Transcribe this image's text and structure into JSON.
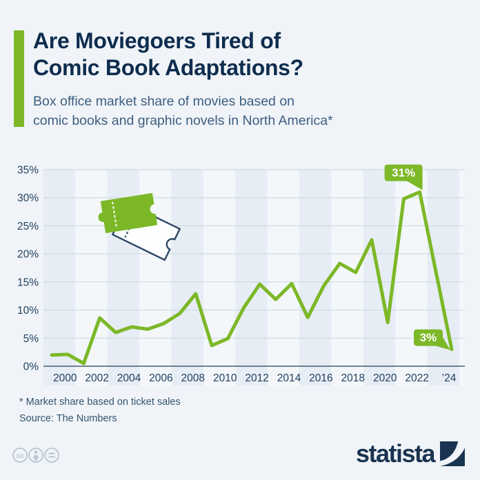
{
  "header": {
    "title_line1": "Are Moviegoers Tired of",
    "title_line2": "Comic Book Adaptations?",
    "subtitle_line1": "Box office market share of movies based on",
    "subtitle_line2": "comic books and graphic novels in North America*"
  },
  "chart_data": {
    "type": "line",
    "title": "Box office market share of movies based on comic books and graphic novels in North America",
    "unit": "%",
    "years": [
      1999,
      2000,
      2001,
      2002,
      2003,
      2004,
      2005,
      2006,
      2007,
      2008,
      2009,
      2010,
      2011,
      2012,
      2013,
      2014,
      2015,
      2016,
      2017,
      2018,
      2019,
      2020,
      2021,
      2022,
      2023,
      2024
    ],
    "values": [
      2.0,
      2.1,
      0.5,
      8.6,
      6.0,
      7.0,
      6.6,
      7.6,
      9.4,
      12.9,
      3.7,
      4.9,
      10.4,
      14.6,
      11.9,
      14.7,
      8.7,
      14.3,
      18.3,
      16.7,
      22.5,
      7.8,
      29.8,
      31,
      17,
      3
    ],
    "x_tick_labels": [
      "2000",
      "2002",
      "2004",
      "2006",
      "2008",
      "2010",
      "2012",
      "2014",
      "2016",
      "2018",
      "2020",
      "2022",
      "’24"
    ],
    "y_ticks": [
      0,
      5,
      10,
      15,
      20,
      25,
      30,
      35
    ],
    "y_tick_labels": [
      "0%",
      "5%",
      "10%",
      "15%",
      "20%",
      "25%",
      "30%",
      "35%"
    ],
    "ylim": [
      0,
      35
    ],
    "grid": true,
    "legend": "none",
    "annotations": [
      {
        "year": 2022,
        "value": 31,
        "label": "31%"
      },
      {
        "year": 2024,
        "value": 3,
        "label": "3%"
      }
    ],
    "line_color": "#7CB827"
  },
  "footer": {
    "footnote": "* Market share based on ticket sales",
    "source": "Source: The Numbers"
  },
  "branding": {
    "logo_text": "statista",
    "license_icons": [
      "cc-icon",
      "attribution-icon",
      "no-derivatives-icon"
    ]
  },
  "colors": {
    "accent_green": "#7CB827",
    "title_navy": "#0E2C4E",
    "subtitle_slate": "#3E5E80",
    "axis_text": "#23405F",
    "background": "#F0F4F8",
    "band_dark": "#E7EDF4",
    "band_light": "#F3F7FA",
    "gridline": "#C9D4DF",
    "zero_line": "#44596F",
    "callout_text": "#FFFFFF",
    "logo_navy": "#1A3350",
    "license_gray": "#B9C6D3"
  }
}
